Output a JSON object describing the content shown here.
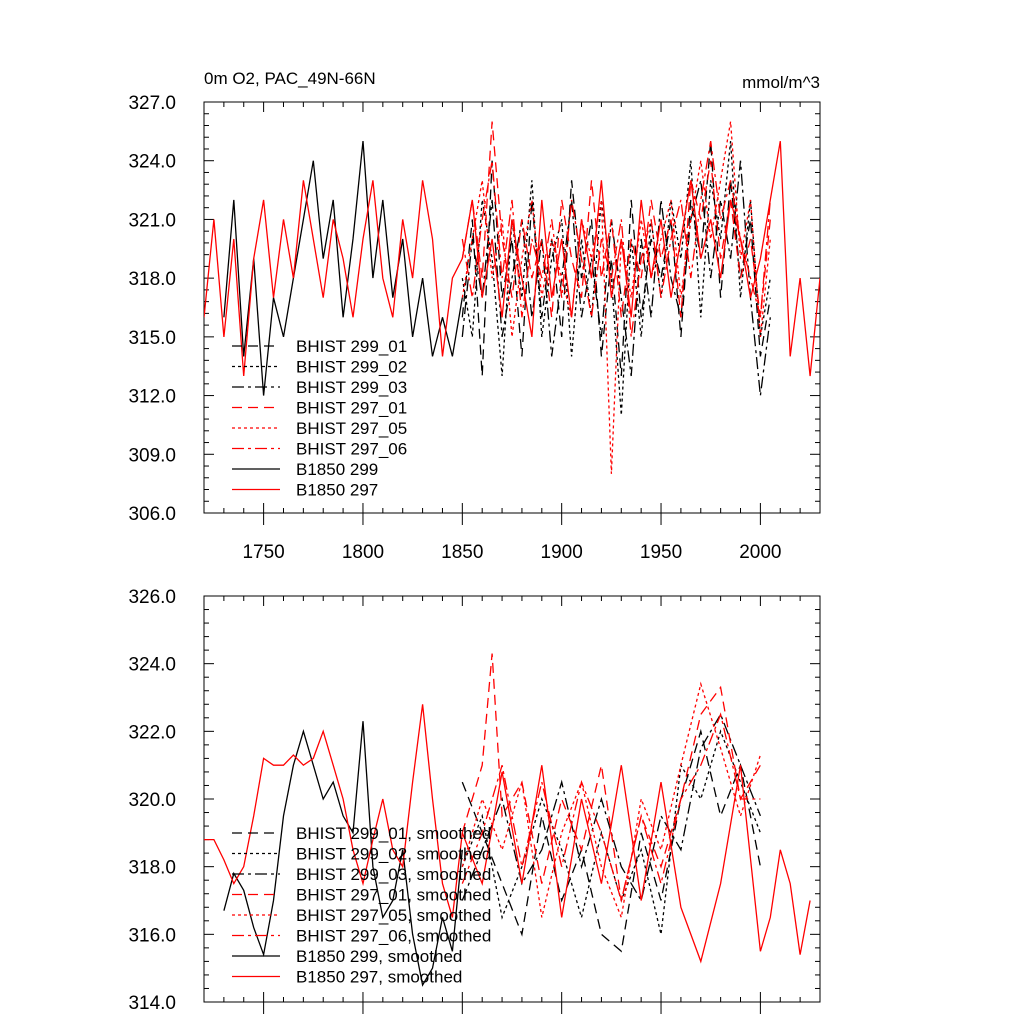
{
  "colors": {
    "black": "#000000",
    "red": "#ff0000"
  },
  "chart_data": [
    {
      "type": "line",
      "title": "0m O2, PAC_49N-66N",
      "unit_label": "mmol/m^3",
      "xlim": [
        1720,
        2030
      ],
      "ylim": [
        306,
        327
      ],
      "yticks": [
        "306.0",
        "309.0",
        "312.0",
        "315.0",
        "318.0",
        "321.0",
        "324.0",
        "327.0"
      ],
      "xticks": [
        "1750",
        "1800",
        "1850",
        "1900",
        "1950",
        "2000"
      ],
      "legend_position": "lower-left",
      "series": [
        {
          "name": "BHIST 299_01",
          "color": "#000000",
          "dash": "10,6",
          "x": [
            1850,
            1855,
            1860,
            1865,
            1870,
            1875,
            1880,
            1885,
            1890,
            1895,
            1900,
            1905,
            1910,
            1915,
            1920,
            1925,
            1930,
            1935,
            1940,
            1945,
            1950,
            1955,
            1960,
            1965,
            1970,
            1975,
            1980,
            1985,
            1990,
            1995,
            2000,
            2005
          ],
          "y": [
            316,
            321,
            313,
            324,
            317,
            320,
            314,
            322,
            316,
            320,
            315,
            323,
            318,
            321,
            314,
            319,
            313,
            322,
            316,
            320,
            318,
            321,
            315,
            322,
            319,
            325,
            317,
            323,
            318,
            321,
            314,
            317
          ]
        },
        {
          "name": "BHIST 299_02",
          "color": "#000000",
          "dash": "3,3",
          "x": [
            1850,
            1855,
            1860,
            1865,
            1870,
            1875,
            1880,
            1885,
            1890,
            1895,
            1900,
            1905,
            1910,
            1915,
            1920,
            1925,
            1930,
            1935,
            1940,
            1945,
            1950,
            1955,
            1960,
            1965,
            1970,
            1975,
            1980,
            1985,
            1990,
            1995,
            2000,
            2005
          ],
          "y": [
            318,
            315,
            322,
            319,
            313,
            321,
            317,
            323,
            315,
            319,
            321,
            314,
            320,
            316,
            322,
            318,
            311,
            320,
            315,
            321,
            317,
            322,
            319,
            324,
            316,
            323,
            320,
            325,
            317,
            322,
            315,
            318
          ]
        },
        {
          "name": "BHIST 299_03",
          "color": "#000000",
          "dash": "12,4,3,4",
          "x": [
            1850,
            1855,
            1860,
            1865,
            1870,
            1875,
            1880,
            1885,
            1890,
            1895,
            1900,
            1905,
            1910,
            1915,
            1920,
            1925,
            1930,
            1935,
            1940,
            1945,
            1950,
            1955,
            1960,
            1965,
            1970,
            1975,
            1980,
            1985,
            1990,
            1995,
            2000,
            2005
          ],
          "y": [
            315,
            320,
            317,
            322,
            315,
            318,
            321,
            316,
            320,
            314,
            318,
            322,
            316,
            319,
            315,
            321,
            317,
            313,
            320,
            316,
            322,
            318,
            316,
            321,
            323,
            318,
            322,
            319,
            324,
            317,
            312,
            316
          ]
        },
        {
          "name": "BHIST 297_01",
          "color": "#ff0000",
          "dash": "10,6",
          "x": [
            1850,
            1855,
            1860,
            1865,
            1870,
            1875,
            1880,
            1885,
            1890,
            1895,
            1900,
            1905,
            1910,
            1915,
            1920,
            1925,
            1930,
            1935,
            1940,
            1945,
            1950,
            1955,
            1960,
            1965,
            1970,
            1975,
            1980,
            1985,
            1990,
            1995,
            2000,
            2005
          ],
          "y": [
            319,
            322,
            318,
            326,
            320,
            317,
            321,
            318,
            320,
            316,
            322,
            319,
            317,
            323,
            318,
            321,
            316,
            320,
            318,
            322,
            319,
            321,
            316,
            323,
            321,
            324,
            319,
            322,
            318,
            320,
            316,
            321
          ]
        },
        {
          "name": "BHIST 297_05",
          "color": "#ff0000",
          "dash": "3,3",
          "x": [
            1850,
            1855,
            1860,
            1865,
            1870,
            1875,
            1880,
            1885,
            1890,
            1895,
            1900,
            1905,
            1910,
            1915,
            1920,
            1925,
            1930,
            1935,
            1940,
            1945,
            1950,
            1955,
            1960,
            1965,
            1970,
            1975,
            1980,
            1985,
            1990,
            1995,
            2000,
            2005
          ],
          "y": [
            317,
            320,
            323,
            318,
            321,
            315,
            319,
            322,
            317,
            320,
            318,
            316,
            321,
            319,
            322,
            308,
            320,
            317,
            321,
            318,
            320,
            322,
            317,
            321,
            324,
            320,
            323,
            326,
            319,
            322,
            315,
            320
          ]
        },
        {
          "name": "BHIST 297_06",
          "color": "#ff0000",
          "dash": "12,4,3,4",
          "x": [
            1850,
            1855,
            1860,
            1865,
            1870,
            1875,
            1880,
            1885,
            1890,
            1895,
            1900,
            1905,
            1910,
            1915,
            1920,
            1925,
            1930,
            1935,
            1940,
            1945,
            1950,
            1955,
            1960,
            1965,
            1970,
            1975,
            1980,
            1985,
            1990,
            1995,
            2000,
            2005
          ],
          "y": [
            320,
            317,
            321,
            324,
            318,
            322,
            316,
            320,
            318,
            321,
            317,
            322,
            319,
            316,
            320,
            318,
            321,
            315,
            319,
            321,
            317,
            320,
            322,
            318,
            322,
            325,
            321,
            323,
            320,
            318,
            316,
            322
          ]
        },
        {
          "name": "B1850 299",
          "color": "#000000",
          "dash": "",
          "x": [
            1730,
            1735,
            1740,
            1745,
            1750,
            1755,
            1760,
            1765,
            1770,
            1775,
            1780,
            1785,
            1790,
            1795,
            1800,
            1805,
            1810,
            1815,
            1820,
            1825,
            1830,
            1835,
            1840,
            1845,
            1850
          ],
          "y": [
            316,
            322,
            314,
            319,
            312,
            317,
            315,
            318,
            321,
            324,
            319,
            322,
            316,
            320,
            325,
            318,
            322,
            317,
            320,
            315,
            318,
            314,
            316,
            314,
            317
          ]
        },
        {
          "name": "B1850 297",
          "color": "#ff0000",
          "dash": "",
          "x": [
            1720,
            1725,
            1730,
            1735,
            1740,
            1745,
            1750,
            1755,
            1760,
            1765,
            1770,
            1775,
            1780,
            1785,
            1790,
            1795,
            1800,
            1805,
            1810,
            1815,
            1820,
            1825,
            1830,
            1835,
            1840,
            1845,
            1850,
            1855,
            1860,
            1865,
            1870,
            1875,
            1880,
            1885,
            1890,
            1895,
            1900,
            1905,
            1910,
            1915,
            1920,
            1925,
            1930,
            1935,
            1940,
            1945,
            1950,
            1955,
            1960,
            1965,
            1970,
            1975,
            1980,
            1985,
            1990,
            1995,
            2000,
            2005,
            2010,
            2015,
            2020,
            2025,
            2030
          ],
          "y": [
            316,
            321,
            315,
            320,
            313,
            319,
            322,
            317,
            321,
            318,
            323,
            320,
            317,
            321,
            319,
            316,
            320,
            323,
            318,
            316,
            321,
            318,
            323,
            320,
            314,
            318,
            319,
            322,
            317,
            320,
            316,
            321,
            318,
            315,
            322,
            317,
            320,
            316,
            321,
            318,
            323,
            317,
            320,
            316,
            322,
            318,
            321,
            317,
            320,
            323,
            319,
            321,
            318,
            322,
            320,
            317,
            319,
            322,
            325,
            314,
            318,
            313,
            318
          ]
        }
      ]
    },
    {
      "type": "line",
      "title": "",
      "xlim": [
        1720,
        2030
      ],
      "ylim": [
        314,
        326
      ],
      "yticks": [
        "314.0",
        "316.0",
        "318.0",
        "320.0",
        "322.0",
        "324.0",
        "326.0"
      ],
      "xticks": [],
      "legend_position": "lower-left",
      "series": [
        {
          "name": "BHIST 299_01, smoothed",
          "color": "#000000",
          "dash": "10,6",
          "x": [
            1850,
            1860,
            1870,
            1880,
            1890,
            1900,
            1910,
            1920,
            1930,
            1940,
            1950,
            1960,
            1970,
            1980,
            1990,
            2000
          ],
          "y": [
            320.5,
            319,
            317.5,
            316,
            319.5,
            317,
            318.5,
            316,
            315.5,
            319,
            317,
            320,
            322,
            319.5,
            321,
            318
          ]
        },
        {
          "name": "BHIST 299_02, smoothed",
          "color": "#000000",
          "dash": "3,3",
          "x": [
            1850,
            1860,
            1870,
            1880,
            1890,
            1900,
            1910,
            1920,
            1930,
            1940,
            1950,
            1960,
            1970,
            1980,
            1990,
            2000
          ],
          "y": [
            318,
            319.5,
            316.5,
            318,
            320,
            318.5,
            316.5,
            319,
            317,
            318.5,
            316,
            321,
            320,
            322,
            320.5,
            319
          ]
        },
        {
          "name": "BHIST 299_03, smoothed",
          "color": "#000000",
          "dash": "12,4,3,4",
          "x": [
            1850,
            1860,
            1870,
            1880,
            1890,
            1900,
            1910,
            1920,
            1930,
            1940,
            1950,
            1960,
            1970,
            1980,
            1990,
            2000
          ],
          "y": [
            317,
            318.5,
            320,
            317.5,
            318.5,
            320.5,
            318,
            320,
            318,
            317,
            319.5,
            318.5,
            321.5,
            322.5,
            321,
            319.5
          ]
        },
        {
          "name": "BHIST 297_01, smoothed",
          "color": "#ff0000",
          "dash": "10,6",
          "x": [
            1850,
            1860,
            1865,
            1870,
            1880,
            1890,
            1900,
            1910,
            1920,
            1930,
            1940,
            1950,
            1960,
            1970,
            1980,
            1990,
            2000
          ],
          "y": [
            319,
            321,
            324.3,
            319.5,
            320.5,
            317.5,
            320,
            318.5,
            321,
            317,
            319.5,
            318,
            320,
            322.5,
            323.3,
            320,
            321
          ]
        },
        {
          "name": "BHIST 297_05, smoothed",
          "color": "#ff0000",
          "dash": "3,3",
          "x": [
            1850,
            1860,
            1870,
            1880,
            1890,
            1900,
            1910,
            1920,
            1930,
            1940,
            1950,
            1960,
            1970,
            1980,
            1990,
            2000
          ],
          "y": [
            318,
            320,
            318.5,
            320.5,
            316.5,
            319,
            320.5,
            318,
            316.5,
            320,
            318.5,
            321,
            323.4,
            321.5,
            319.5,
            321.3
          ]
        },
        {
          "name": "BHIST 297_06, smoothed",
          "color": "#ff0000",
          "dash": "12,4,3,4",
          "x": [
            1850,
            1860,
            1870,
            1880,
            1890,
            1900,
            1910,
            1920,
            1930,
            1940,
            1950,
            1960,
            1970,
            1980,
            1990,
            2000
          ],
          "y": [
            317.5,
            319,
            321,
            318,
            320.5,
            318,
            320.5,
            319,
            317,
            319.5,
            317.5,
            320,
            321,
            322.5,
            320,
            320
          ]
        },
        {
          "name": "B1850 299, smoothed",
          "color": "#000000",
          "dash": "",
          "x": [
            1730,
            1735,
            1740,
            1745,
            1750,
            1755,
            1760,
            1765,
            1770,
            1775,
            1780,
            1785,
            1790,
            1795,
            1800,
            1805,
            1810,
            1815,
            1820,
            1825,
            1830,
            1835,
            1840,
            1845,
            1850
          ],
          "y": [
            316.7,
            317.8,
            317.3,
            316.2,
            315.4,
            317,
            319.5,
            321,
            322,
            321,
            320,
            320.5,
            319.5,
            319,
            322.3,
            318,
            316.5,
            317,
            318.5,
            316,
            314.5,
            315,
            316.5,
            315.5,
            318.5
          ]
        },
        {
          "name": "B1850 297, smoothed",
          "color": "#ff0000",
          "dash": "",
          "x": [
            1720,
            1725,
            1730,
            1735,
            1740,
            1745,
            1750,
            1755,
            1760,
            1765,
            1770,
            1775,
            1780,
            1785,
            1790,
            1795,
            1800,
            1805,
            1810,
            1815,
            1820,
            1825,
            1830,
            1835,
            1840,
            1845,
            1850,
            1860,
            1870,
            1880,
            1890,
            1900,
            1910,
            1920,
            1930,
            1940,
            1950,
            1960,
            1970,
            1980,
            1990,
            2000,
            2005,
            2010,
            2015,
            2020,
            2025
          ],
          "y": [
            318.8,
            318.8,
            318.2,
            317.5,
            318,
            319.5,
            321.2,
            321,
            321,
            321.3,
            321,
            321.2,
            322,
            321,
            320,
            318.5,
            317.5,
            318.8,
            320,
            318.5,
            318,
            320.5,
            322.8,
            320,
            317.5,
            316.5,
            319,
            317.5,
            320.8,
            317.5,
            321,
            316.5,
            320,
            317.5,
            321,
            317,
            320.5,
            316.8,
            315.2,
            317.5,
            321,
            315.5,
            316.5,
            318.5,
            317.5,
            315.4,
            317
          ]
        }
      ]
    }
  ]
}
